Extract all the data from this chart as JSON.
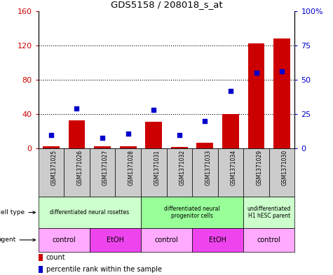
{
  "title": "GDS5158 / 208018_s_at",
  "samples": [
    "GSM1371025",
    "GSM1371026",
    "GSM1371027",
    "GSM1371028",
    "GSM1371031",
    "GSM1371032",
    "GSM1371033",
    "GSM1371034",
    "GSM1371029",
    "GSM1371030"
  ],
  "counts": [
    3,
    33,
    3,
    3,
    31,
    2,
    7,
    40,
    122,
    128
  ],
  "percentile_ranks": [
    10,
    29,
    8,
    11,
    28,
    10,
    20,
    42,
    55,
    56
  ],
  "ylim_left": [
    0,
    160
  ],
  "ylim_right": [
    0,
    100
  ],
  "yticks_left": [
    0,
    40,
    80,
    120,
    160
  ],
  "yticks_right": [
    0,
    25,
    50,
    75,
    100
  ],
  "yticklabels_left": [
    "0",
    "40",
    "80",
    "120",
    "160"
  ],
  "yticklabels_right": [
    "0",
    "25",
    "50",
    "75",
    "100%"
  ],
  "bar_color": "#cc0000",
  "dot_color": "#0000cc",
  "cell_type_groups": [
    {
      "label": "differentiated neural rosettes",
      "start": 0,
      "end": 4,
      "color": "#ccffcc"
    },
    {
      "label": "differentiated neural\nprogenitor cells",
      "start": 4,
      "end": 8,
      "color": "#99ff99"
    },
    {
      "label": "undifferentiated\nH1 hESC parent",
      "start": 8,
      "end": 10,
      "color": "#ccffcc"
    }
  ],
  "agent_groups": [
    {
      "label": "control",
      "start": 0,
      "end": 2,
      "color": "#ffaaff"
    },
    {
      "label": "EtOH",
      "start": 2,
      "end": 4,
      "color": "#ee44ee"
    },
    {
      "label": "control",
      "start": 4,
      "end": 6,
      "color": "#ffaaff"
    },
    {
      "label": "EtOH",
      "start": 6,
      "end": 8,
      "color": "#ee44ee"
    },
    {
      "label": "control",
      "start": 8,
      "end": 10,
      "color": "#ffaaff"
    }
  ],
  "cell_type_label": "cell type",
  "agent_label": "agent",
  "legend_count_label": "count",
  "legend_pct_label": "percentile rank within the sample",
  "background_plot": "#ffffff",
  "sample_bg": "#cccccc"
}
